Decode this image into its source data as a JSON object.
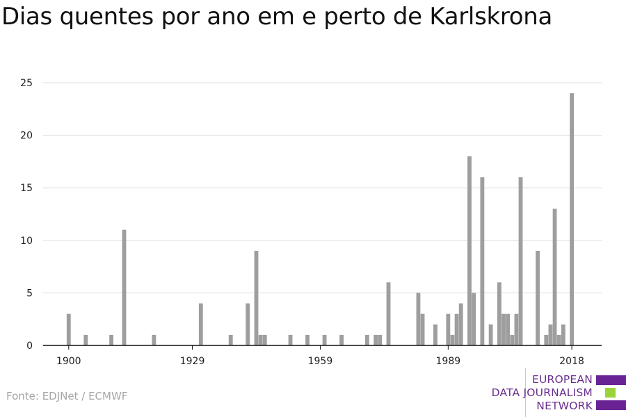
{
  "title": "Dias quentes por ano em e perto de Karlskrona",
  "source": "Fonte: EDJNet / ECMWF",
  "logo": {
    "lines": [
      "EUROPEAN",
      "DATA JOURNALISM",
      "NETWORK"
    ],
    "text_color": "#6a2f8e",
    "bar_colors": [
      "#6a2394",
      "#9ad43a",
      "#6a2394"
    ]
  },
  "chart_data": {
    "type": "bar",
    "title": "Dias quentes por ano em e perto de Karlskrona",
    "xlabel": "",
    "ylabel": "",
    "x_ticks": [
      1900,
      1929,
      1959,
      1989,
      2018
    ],
    "y_ticks": [
      0,
      5,
      10,
      15,
      20,
      25
    ],
    "xlim": [
      1894,
      2025
    ],
    "ylim": [
      0,
      25
    ],
    "grid": true,
    "bar_color": "#9e9e9e",
    "x": [
      1900,
      1904,
      1910,
      1913,
      1920,
      1931,
      1938,
      1942,
      1944,
      1945,
      1946,
      1952,
      1956,
      1960,
      1964,
      1970,
      1972,
      1973,
      1975,
      1982,
      1983,
      1986,
      1989,
      1990,
      1991,
      1992,
      1994,
      1995,
      1997,
      1999,
      2001,
      2002,
      2003,
      2004,
      2005,
      2006,
      2010,
      2012,
      2013,
      2014,
      2015,
      2016,
      2018
    ],
    "values": [
      3,
      1,
      1,
      11,
      1,
      4,
      1,
      4,
      9,
      1,
      1,
      1,
      1,
      1,
      1,
      1,
      1,
      1,
      6,
      5,
      3,
      2,
      3,
      1,
      3,
      4,
      18,
      5,
      16,
      2,
      6,
      3,
      3,
      1,
      3,
      16,
      9,
      1,
      2,
      13,
      1,
      2,
      24
    ]
  }
}
